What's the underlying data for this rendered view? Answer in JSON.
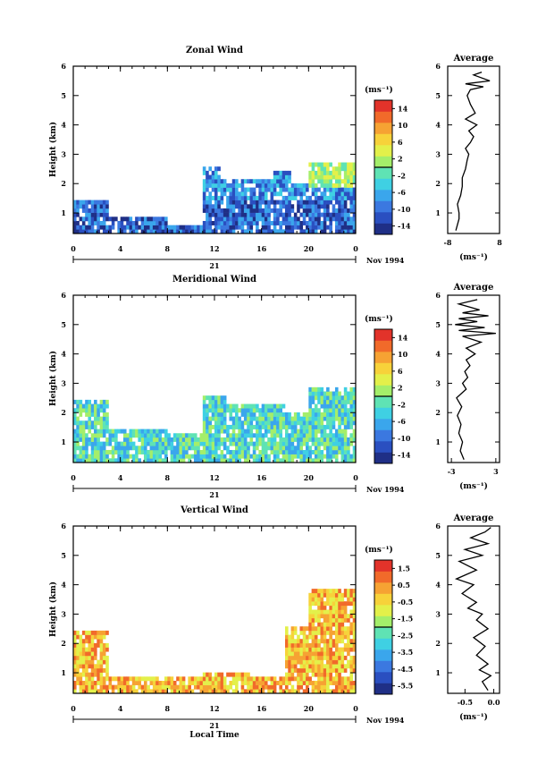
{
  "chart_data": [
    {
      "type": "heatmap",
      "title": "Zonal Wind",
      "xlabel": "",
      "ylabel": "Height (km)",
      "xlim": [
        0,
        24
      ],
      "ylim": [
        0.3,
        6
      ],
      "x_ticks": [
        "0",
        "4",
        "8",
        "12",
        "16",
        "20",
        "0"
      ],
      "x_tick_values": [
        0,
        4,
        8,
        12,
        16,
        20,
        24
      ],
      "y_ticks": [
        "1",
        "2",
        "3",
        "4",
        "5",
        "6"
      ],
      "date_day": "21",
      "date_label": "Nov 1994",
      "colorbar": {
        "unit": "(ms⁻¹)",
        "range": [
          -16,
          16
        ],
        "tick_labels": [
          "14",
          "10",
          "6",
          "2",
          "-2",
          "-6",
          "-10",
          "-14"
        ],
        "tick_values": [
          14,
          10,
          6,
          2,
          -2,
          -6,
          -10,
          -14
        ]
      },
      "profile": {
        "title": "Average",
        "xlabel": "(ms⁻¹)",
        "xlim": [
          -8,
          8
        ],
        "x_ticks": [
          "-8",
          "8"
        ],
        "x_tick_values": [
          -8,
          8
        ],
        "y_ticks": [
          "1",
          "2",
          "3",
          "4",
          "5",
          "6"
        ],
        "points": [
          [
            -5.5,
            0.4
          ],
          [
            -4.5,
            0.8
          ],
          [
            -4.5,
            1.0
          ],
          [
            -5,
            1.3
          ],
          [
            -4,
            1.6
          ],
          [
            -3.5,
            1.9
          ],
          [
            -3.5,
            2.2
          ],
          [
            -2.5,
            2.5
          ],
          [
            -2,
            2.8
          ],
          [
            -1.5,
            3.0
          ],
          [
            -2.5,
            3.2
          ],
          [
            -1,
            3.4
          ],
          [
            0,
            3.6
          ],
          [
            -1.5,
            3.8
          ],
          [
            1,
            4.0
          ],
          [
            -2.5,
            4.2
          ],
          [
            0.5,
            4.4
          ],
          [
            -1,
            4.7
          ],
          [
            -2,
            5.0
          ],
          [
            -1,
            5.2
          ],
          [
            3,
            5.3
          ],
          [
            -2.5,
            5.4
          ],
          [
            5,
            5.5
          ],
          [
            0,
            5.7
          ],
          [
            2.5,
            5.8
          ]
        ]
      }
    },
    {
      "type": "heatmap",
      "title": "Meridional Wind",
      "xlabel": "",
      "ylabel": "Height (km)",
      "xlim": [
        0,
        24
      ],
      "ylim": [
        0.3,
        6
      ],
      "x_ticks": [
        "0",
        "4",
        "8",
        "12",
        "16",
        "20",
        "0"
      ],
      "x_tick_values": [
        0,
        4,
        8,
        12,
        16,
        20,
        24
      ],
      "y_ticks": [
        "1",
        "2",
        "3",
        "4",
        "5",
        "6"
      ],
      "date_day": "21",
      "date_label": "Nov 1994",
      "colorbar": {
        "unit": "(ms⁻¹)",
        "range": [
          -16,
          16
        ],
        "tick_labels": [
          "14",
          "10",
          "6",
          "2",
          "-2",
          "-6",
          "-10",
          "-14"
        ],
        "tick_values": [
          14,
          10,
          6,
          2,
          -2,
          -6,
          -10,
          -14
        ]
      },
      "profile": {
        "title": "Average",
        "xlabel": "(ms⁻¹)",
        "xlim": [
          -3.5,
          3.5
        ],
        "x_ticks": [
          "-3",
          "3"
        ],
        "x_tick_values": [
          -3,
          3
        ],
        "y_ticks": [
          "1",
          "2",
          "3",
          "4",
          "5",
          "6"
        ],
        "points": [
          [
            -1.3,
            0.4
          ],
          [
            -1.8,
            0.7
          ],
          [
            -1.5,
            1.0
          ],
          [
            -2.0,
            1.3
          ],
          [
            -1.7,
            1.6
          ],
          [
            -2.2,
            1.9
          ],
          [
            -1.6,
            2.2
          ],
          [
            -2.3,
            2.5
          ],
          [
            -1.0,
            2.8
          ],
          [
            -1.5,
            3.0
          ],
          [
            -0.8,
            3.2
          ],
          [
            -1.2,
            3.4
          ],
          [
            -0.5,
            3.6
          ],
          [
            -1.0,
            3.8
          ],
          [
            0.2,
            4.0
          ],
          [
            -1.0,
            4.2
          ],
          [
            1.0,
            4.4
          ],
          [
            -1.5,
            4.6
          ],
          [
            3.0,
            4.7
          ],
          [
            -2.0,
            4.8
          ],
          [
            1.5,
            4.9
          ],
          [
            -2.5,
            5.0
          ],
          [
            0.5,
            5.1
          ],
          [
            -2.0,
            5.2
          ],
          [
            2.0,
            5.3
          ],
          [
            -1.5,
            5.4
          ],
          [
            0.8,
            5.5
          ],
          [
            -2.0,
            5.7
          ],
          [
            0.5,
            5.85
          ]
        ]
      }
    },
    {
      "type": "heatmap",
      "title": "Vertical Wind",
      "xlabel": "Local Time",
      "ylabel": "Height (km)",
      "xlim": [
        0,
        24
      ],
      "ylim": [
        0.3,
        6
      ],
      "x_ticks": [
        "0",
        "4",
        "8",
        "12",
        "16",
        "20",
        "0"
      ],
      "x_tick_values": [
        0,
        4,
        8,
        12,
        16,
        20,
        24
      ],
      "y_ticks": [
        "1",
        "2",
        "3",
        "4",
        "5",
        "6"
      ],
      "date_day": "21",
      "date_label": "Nov 1994",
      "colorbar": {
        "unit": "(ms⁻¹)",
        "range": [
          -6.0,
          2.0
        ],
        "tick_labels": [
          "1.5",
          "0.5",
          "-0.5",
          "-1.5",
          "-2.5",
          "-3.5",
          "-4.5",
          "-5.5"
        ],
        "tick_values": [
          1.5,
          0.5,
          -0.5,
          -1.5,
          -2.5,
          -3.5,
          -4.5,
          -5.5
        ]
      },
      "profile": {
        "title": "Average",
        "xlabel": "(ms⁻¹)",
        "xlim": [
          -0.8,
          0.1
        ],
        "x_ticks": [
          "-0.5",
          "0.0"
        ],
        "x_tick_values": [
          -0.5,
          0.0
        ],
        "y_ticks": [
          "1",
          "2",
          "3",
          "4",
          "5",
          "6"
        ],
        "points": [
          [
            -0.1,
            0.4
          ],
          [
            -0.2,
            0.7
          ],
          [
            -0.05,
            0.9
          ],
          [
            -0.25,
            1.1
          ],
          [
            -0.1,
            1.3
          ],
          [
            -0.3,
            1.6
          ],
          [
            -0.15,
            1.9
          ],
          [
            -0.35,
            2.2
          ],
          [
            -0.1,
            2.5
          ],
          [
            -0.3,
            2.8
          ],
          [
            -0.2,
            3.0
          ],
          [
            -0.45,
            3.2
          ],
          [
            -0.3,
            3.4
          ],
          [
            -0.55,
            3.7
          ],
          [
            -0.35,
            4.0
          ],
          [
            -0.65,
            4.2
          ],
          [
            -0.3,
            4.5
          ],
          [
            -0.6,
            4.8
          ],
          [
            -0.2,
            5.0
          ],
          [
            -0.5,
            5.2
          ],
          [
            -0.1,
            5.4
          ],
          [
            -0.4,
            5.6
          ],
          [
            -0.15,
            5.8
          ],
          [
            -0.05,
            5.95
          ]
        ]
      }
    }
  ]
}
